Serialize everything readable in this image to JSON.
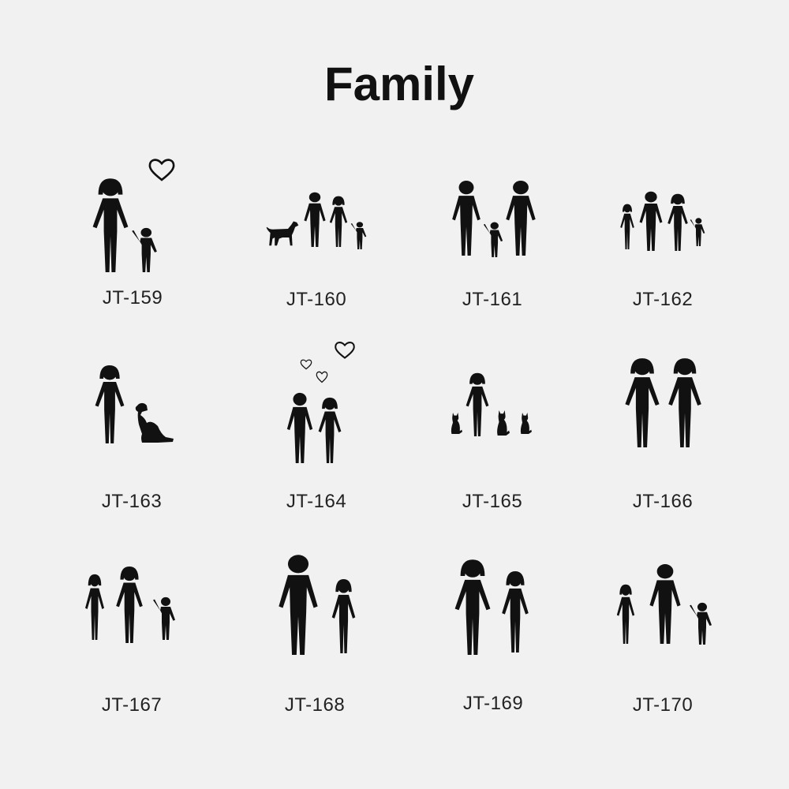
{
  "title": "Family",
  "colors": {
    "background": "#f1f1f1",
    "ink": "#111111"
  },
  "designs": [
    {
      "code": "JT-159",
      "figures": [
        "woman",
        "child",
        "heart"
      ]
    },
    {
      "code": "JT-160",
      "figures": [
        "dog",
        "man",
        "woman",
        "child"
      ]
    },
    {
      "code": "JT-161",
      "figures": [
        "man",
        "child",
        "man"
      ]
    },
    {
      "code": "JT-162",
      "figures": [
        "girl",
        "man",
        "woman",
        "child"
      ]
    },
    {
      "code": "JT-163",
      "figures": [
        "woman",
        "sitting-dog"
      ]
    },
    {
      "code": "JT-164",
      "figures": [
        "heart",
        "heart",
        "heart",
        "man",
        "woman"
      ]
    },
    {
      "code": "JT-165",
      "figures": [
        "cat",
        "woman",
        "cat",
        "cat"
      ]
    },
    {
      "code": "JT-166",
      "figures": [
        "woman",
        "woman"
      ]
    },
    {
      "code": "JT-167",
      "figures": [
        "girl",
        "woman",
        "child"
      ]
    },
    {
      "code": "JT-168",
      "figures": [
        "man",
        "woman"
      ]
    },
    {
      "code": "JT-169",
      "figures": [
        "woman",
        "woman"
      ]
    },
    {
      "code": "JT-170",
      "figures": [
        "girl",
        "man",
        "child"
      ]
    }
  ]
}
